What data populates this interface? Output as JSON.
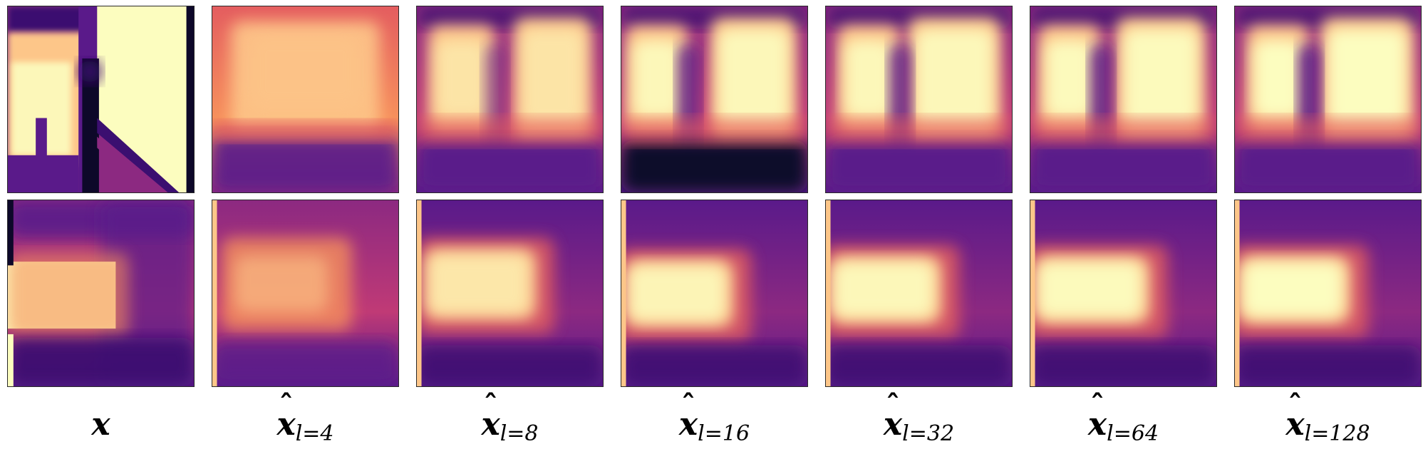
{
  "figure": {
    "palette": [
      "#0d0829",
      "#3b0f70",
      "#5a1a8a",
      "#8c2981",
      "#c03a76",
      "#e45d5f",
      "#f6905c",
      "#fdc689",
      "#fcfdbf"
    ],
    "columns": [
      {
        "id": "x",
        "base": "x",
        "hat": false,
        "sub_var": "",
        "sub_val": ""
      },
      {
        "id": "l4",
        "base": "x",
        "hat": true,
        "sub_var": "l",
        "sub_val": "=4"
      },
      {
        "id": "l8",
        "base": "x",
        "hat": true,
        "sub_var": "l",
        "sub_val": "=8"
      },
      {
        "id": "l16",
        "base": "x",
        "hat": true,
        "sub_var": "l",
        "sub_val": "=16"
      },
      {
        "id": "l32",
        "base": "x",
        "hat": true,
        "sub_var": "l",
        "sub_val": "=32"
      },
      {
        "id": "l64",
        "base": "x",
        "hat": true,
        "sub_var": "l",
        "sub_val": "=64"
      },
      {
        "id": "l128",
        "base": "x",
        "hat": true,
        "sub_var": "l",
        "sub_val": "=128"
      }
    ]
  }
}
